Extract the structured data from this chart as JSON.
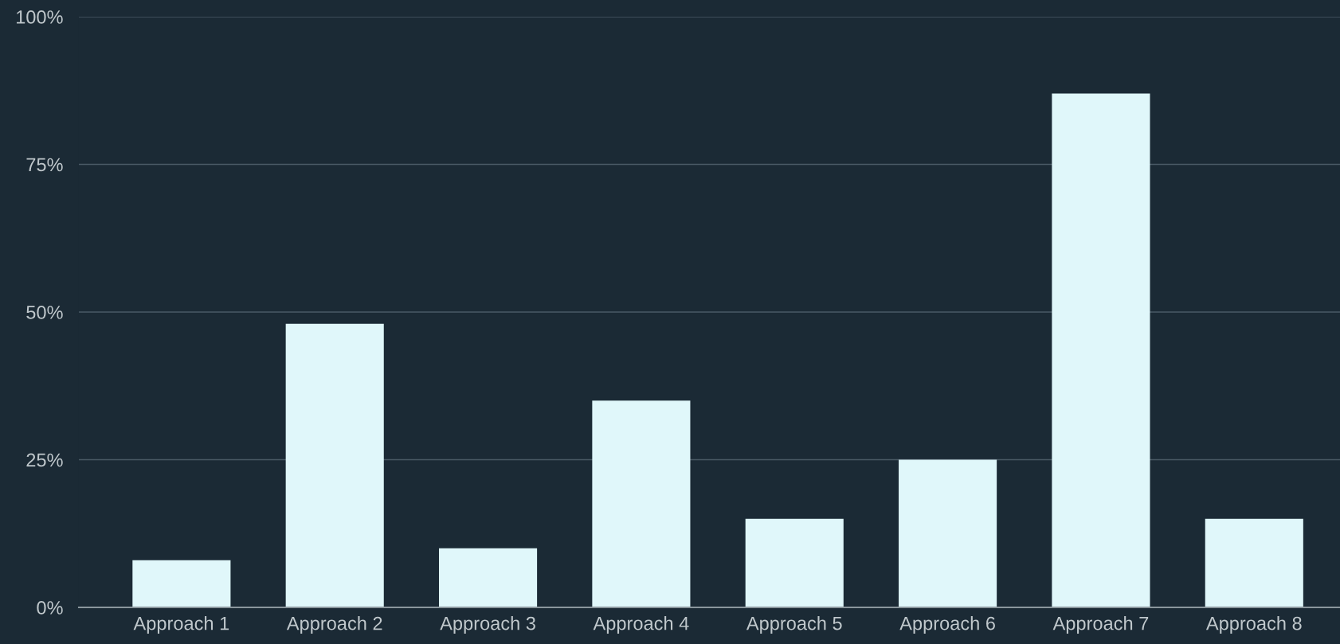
{
  "chart_data": {
    "type": "bar",
    "categories": [
      "Approach 1",
      "Approach 2",
      "Approach 3",
      "Approach 4",
      "Approach 5",
      "Approach 6",
      "Approach 7",
      "Approach 8"
    ],
    "values": [
      8,
      48,
      10,
      35,
      15,
      25,
      87,
      15
    ],
    "color": "#e0f7fa",
    "ylim": [
      0,
      100
    ],
    "yticks": [
      {
        "value": 0,
        "label": "0%"
      },
      {
        "value": 25,
        "label": "25%"
      },
      {
        "value": 50,
        "label": "50%"
      },
      {
        "value": 75,
        "label": "75%"
      },
      {
        "value": 100,
        "label": "100%"
      }
    ],
    "grid": "y",
    "legend": false
  }
}
